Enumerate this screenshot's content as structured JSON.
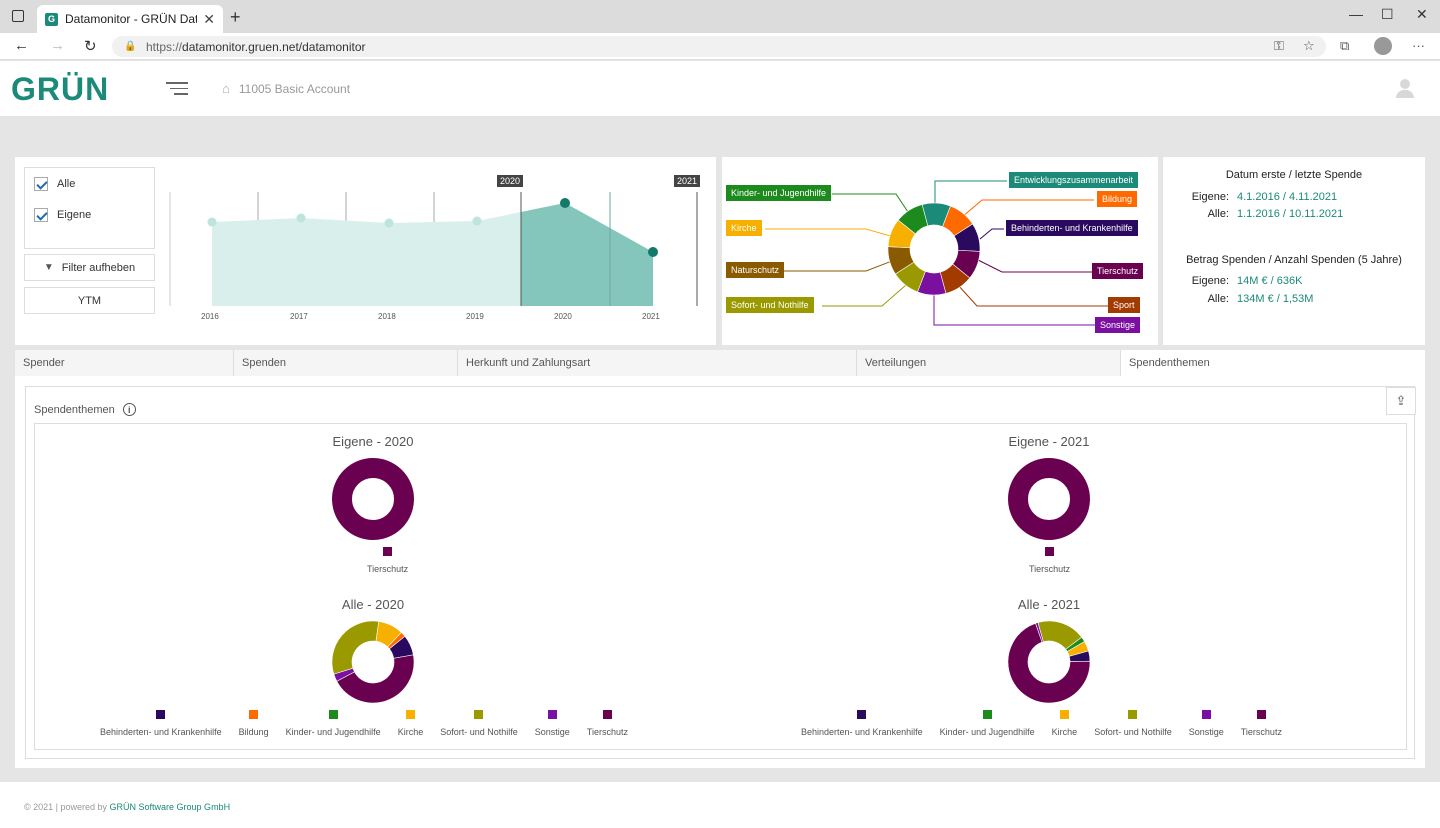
{
  "browser": {
    "tab_title": "Datamonitor - GRÜN Data Moni",
    "url_scheme": "https://",
    "url_rest": "datamonitor.gruen.net/datamonitor"
  },
  "header": {
    "logo": "GRÜN",
    "account": "11005 Basic Account"
  },
  "filters": {
    "alle": "Alle",
    "eigene": "Eigene",
    "clear": "Filter aufheben",
    "ytm": "YTM"
  },
  "timeline": {
    "years": [
      "2016",
      "2017",
      "2018",
      "2019",
      "2020",
      "2021"
    ],
    "marker_start": "2020",
    "marker_end": "2021"
  },
  "donut_labels": {
    "left": [
      "Kinder- und Jugendhilfe",
      "Kirche",
      "Naturschutz",
      "Sofort- und Nothilfe"
    ],
    "right": [
      "Entwicklungszusammenarbeit",
      "Bildung",
      "Behinderten- und Krankenhilfe",
      "Tierschutz",
      "Sport",
      "Sonstige"
    ]
  },
  "summary": {
    "title1": "Datum erste / letzte Spende",
    "eigene_k": "Eigene:",
    "eigene_date": "4.1.2016 / 4.11.2021",
    "alle_k": "Alle:",
    "alle_date": "1.1.2016 / 10.11.2021",
    "title2": "Betrag Spenden / Anzahl Spenden (5 Jahre)",
    "eigene_amt": "14M € / 636K",
    "alle_amt": "134M € / 1,53M"
  },
  "tabs": [
    "Spender",
    "Spenden",
    "Herkunft und Zahlungsart",
    "Verteilungen",
    "Spendenthemen"
  ],
  "section_title": "Spendenthemen",
  "charts": {
    "eigene2020": "Eigene - 2020",
    "eigene2021": "Eigene - 2021",
    "alle2020": "Alle - 2020",
    "alle2021": "Alle - 2021",
    "tierschutz": "Tierschutz",
    "legend2020": [
      "Behinderten- und Krankenhilfe",
      "Bildung",
      "Kinder- und Jugendhilfe",
      "Kirche",
      "Sofort- und Nothilfe",
      "Sonstige",
      "Tierschutz"
    ],
    "legend2021": [
      "Behinderten- und Krankenhilfe",
      "Kinder- und Jugendhilfe",
      "Kirche",
      "Sofort- und Nothilfe",
      "Sonstige",
      "Tierschutz"
    ]
  },
  "colors": {
    "brand": "#1b8a78",
    "behinderten": "#2a0a5e",
    "bildung": "#ff6a00",
    "kinder": "#1d8a1d",
    "kirche": "#f7b000",
    "sofort": "#9a9a00",
    "sonstige": "#7a0fa0",
    "tierschutz": "#6a0050",
    "naturschutz": "#8a5a00",
    "sport": "#a33a00",
    "entwicklung": "#1b8a78"
  },
  "footer": {
    "prefix": "© 2021 | powered by ",
    "company": "GRÜN Software Group GmbH"
  }
}
